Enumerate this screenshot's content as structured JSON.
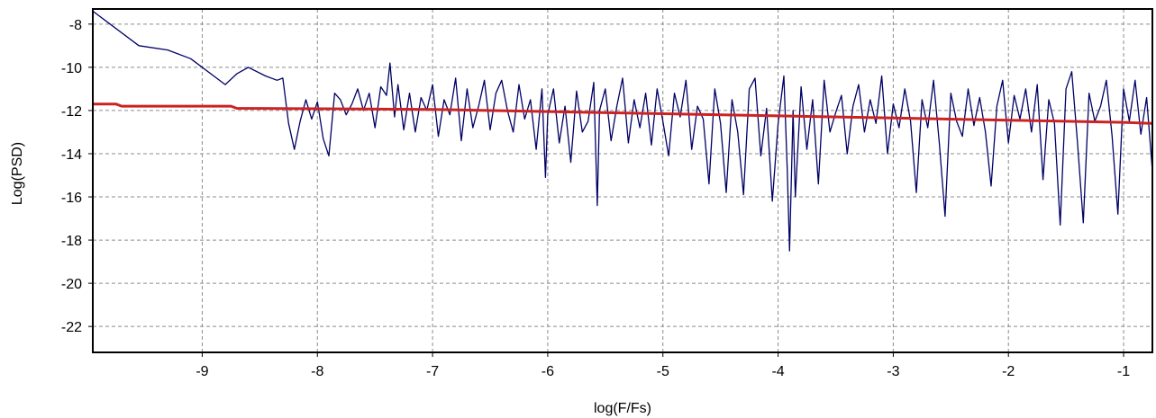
{
  "chart_data": {
    "type": "line",
    "title": "",
    "xlabel": "log(F/Fs)",
    "ylabel": "Log(PSD)",
    "xlim": [
      -9.95,
      -0.75
    ],
    "ylim": [
      -23.2,
      -7.3
    ],
    "grid": true,
    "x_ticks": [
      -9,
      -8,
      -7,
      -6,
      -5,
      -4,
      -3,
      -2,
      -1
    ],
    "x_tick_labels": [
      "-9",
      "-8",
      "-7",
      "-6",
      "-5",
      "-4",
      "-3",
      "-2",
      "-1"
    ],
    "y_ticks": [
      -8,
      -10,
      -12,
      -14,
      -16,
      -18,
      -20,
      -22
    ],
    "y_tick_labels": [
      "-8",
      "-10",
      "-12",
      "-14",
      "-16",
      "-18",
      "-20",
      "-22"
    ],
    "series": [
      {
        "color": "#000066",
        "values_x": [
          -9.95,
          -9.8,
          -9.55,
          -9.3,
          -9.1,
          -8.9,
          -8.8,
          -8.7,
          -8.6,
          -8.45,
          -8.35,
          -8.3,
          -8.25,
          -8.2,
          -8.15,
          -8.1,
          -8.05,
          -8.0,
          -7.95,
          -7.9,
          -7.85,
          -7.8,
          -7.75,
          -7.7,
          -7.65,
          -7.6,
          -7.55,
          -7.5,
          -7.45,
          -7.4,
          -7.37,
          -7.33,
          -7.3,
          -7.25,
          -7.2,
          -7.15,
          -7.1,
          -7.05,
          -7.0,
          -6.95,
          -6.9,
          -6.85,
          -6.8,
          -6.75,
          -6.7,
          -6.65,
          -6.6,
          -6.55,
          -6.5,
          -6.45,
          -6.4,
          -6.35,
          -6.3,
          -6.25,
          -6.2,
          -6.15,
          -6.1,
          -6.05,
          -6.02,
          -6.0,
          -5.95,
          -5.9,
          -5.85,
          -5.8,
          -5.75,
          -5.7,
          -5.65,
          -5.6,
          -5.57,
          -5.55,
          -5.5,
          -5.45,
          -5.4,
          -5.35,
          -5.3,
          -5.25,
          -5.2,
          -5.15,
          -5.1,
          -5.05,
          -5.0,
          -4.95,
          -4.9,
          -4.85,
          -4.8,
          -4.75,
          -4.7,
          -4.65,
          -4.6,
          -4.55,
          -4.5,
          -4.45,
          -4.4,
          -4.35,
          -4.3,
          -4.25,
          -4.2,
          -4.15,
          -4.1,
          -4.05,
          -4.0,
          -3.95,
          -3.92,
          -3.9,
          -3.87,
          -3.85,
          -3.8,
          -3.75,
          -3.7,
          -3.65,
          -3.6,
          -3.55,
          -3.5,
          -3.45,
          -3.4,
          -3.35,
          -3.3,
          -3.25,
          -3.2,
          -3.15,
          -3.1,
          -3.05,
          -3.0,
          -2.95,
          -2.9,
          -2.85,
          -2.8,
          -2.75,
          -2.7,
          -2.65,
          -2.6,
          -2.55,
          -2.5,
          -2.45,
          -2.4,
          -2.35,
          -2.3,
          -2.25,
          -2.2,
          -2.15,
          -2.1,
          -2.05,
          -2.0,
          -1.95,
          -1.9,
          -1.85,
          -1.8,
          -1.75,
          -1.7,
          -1.65,
          -1.6,
          -1.55,
          -1.5,
          -1.45,
          -1.4,
          -1.35,
          -1.3,
          -1.25,
          -1.2,
          -1.15,
          -1.1,
          -1.05,
          -1.0,
          -0.95,
          -0.9,
          -0.85,
          -0.8,
          -0.75
        ],
        "values_y": [
          -7.4,
          -8.0,
          -9.0,
          -9.2,
          -9.6,
          -10.4,
          -10.8,
          -10.3,
          -10.0,
          -10.4,
          -10.6,
          -10.5,
          -12.6,
          -13.8,
          -12.5,
          -11.5,
          -12.4,
          -11.6,
          -13.3,
          -14.1,
          -11.2,
          -11.5,
          -12.2,
          -11.7,
          -11.0,
          -12.0,
          -11.2,
          -12.8,
          -10.9,
          -11.3,
          -9.8,
          -12.3,
          -10.8,
          -12.9,
          -11.2,
          -13.0,
          -11.4,
          -12.0,
          -10.8,
          -13.2,
          -11.5,
          -12.2,
          -10.5,
          -13.4,
          -11.0,
          -12.8,
          -11.8,
          -10.6,
          -12.9,
          -11.2,
          -10.6,
          -12.0,
          -13.0,
          -10.8,
          -12.4,
          -11.5,
          -13.8,
          -11.0,
          -15.1,
          -12.2,
          -11.0,
          -13.5,
          -11.8,
          -14.4,
          -11.1,
          -13.0,
          -12.5,
          -10.7,
          -16.4,
          -12.0,
          -11.0,
          -13.4,
          -11.8,
          -10.5,
          -13.5,
          -11.5,
          -12.8,
          -11.2,
          -13.6,
          -11.0,
          -12.5,
          -14.1,
          -11.2,
          -12.3,
          -10.6,
          -13.8,
          -11.8,
          -12.4,
          -15.4,
          -11.0,
          -12.6,
          -15.8,
          -11.5,
          -13.0,
          -15.9,
          -11.0,
          -10.5,
          -14.1,
          -11.9,
          -16.2,
          -12.6,
          -10.4,
          -14.8,
          -18.5,
          -12.0,
          -16.0,
          -10.9,
          -13.8,
          -11.5,
          -15.4,
          -10.6,
          -13.0,
          -12.1,
          -11.3,
          -14.0,
          -11.8,
          -10.8,
          -13.0,
          -11.5,
          -12.6,
          -10.4,
          -14.0,
          -11.7,
          -12.8,
          -11.0,
          -12.5,
          -15.8,
          -11.5,
          -12.8,
          -10.6,
          -13.5,
          -16.9,
          -11.2,
          -12.5,
          -13.2,
          -11.0,
          -12.7,
          -11.4,
          -13.0,
          -15.5,
          -11.8,
          -10.6,
          -13.5,
          -11.3,
          -12.4,
          -11.0,
          -13.0,
          -10.8,
          -15.2,
          -11.5,
          -12.6,
          -17.3,
          -11.0,
          -10.2,
          -13.5,
          -17.2,
          -11.2,
          -12.5,
          -11.8,
          -10.6,
          -13.2,
          -16.8,
          -11.0,
          -12.5,
          -10.6,
          -13.1,
          -11.4,
          -14.8
        ]
      },
      {
        "color": "#cc2222",
        "values_x": [
          -9.95,
          -9.75,
          -9.7,
          -9.0,
          -8.75,
          -8.7,
          -7.0,
          -6.0,
          -5.0,
          -4.0,
          -3.0,
          -2.0,
          -1.0,
          -0.75
        ],
        "values_y": [
          -11.7,
          -11.7,
          -11.8,
          -11.8,
          -11.8,
          -11.9,
          -11.95,
          -12.05,
          -12.15,
          -12.25,
          -12.35,
          -12.45,
          -12.55,
          -12.6
        ]
      }
    ]
  }
}
